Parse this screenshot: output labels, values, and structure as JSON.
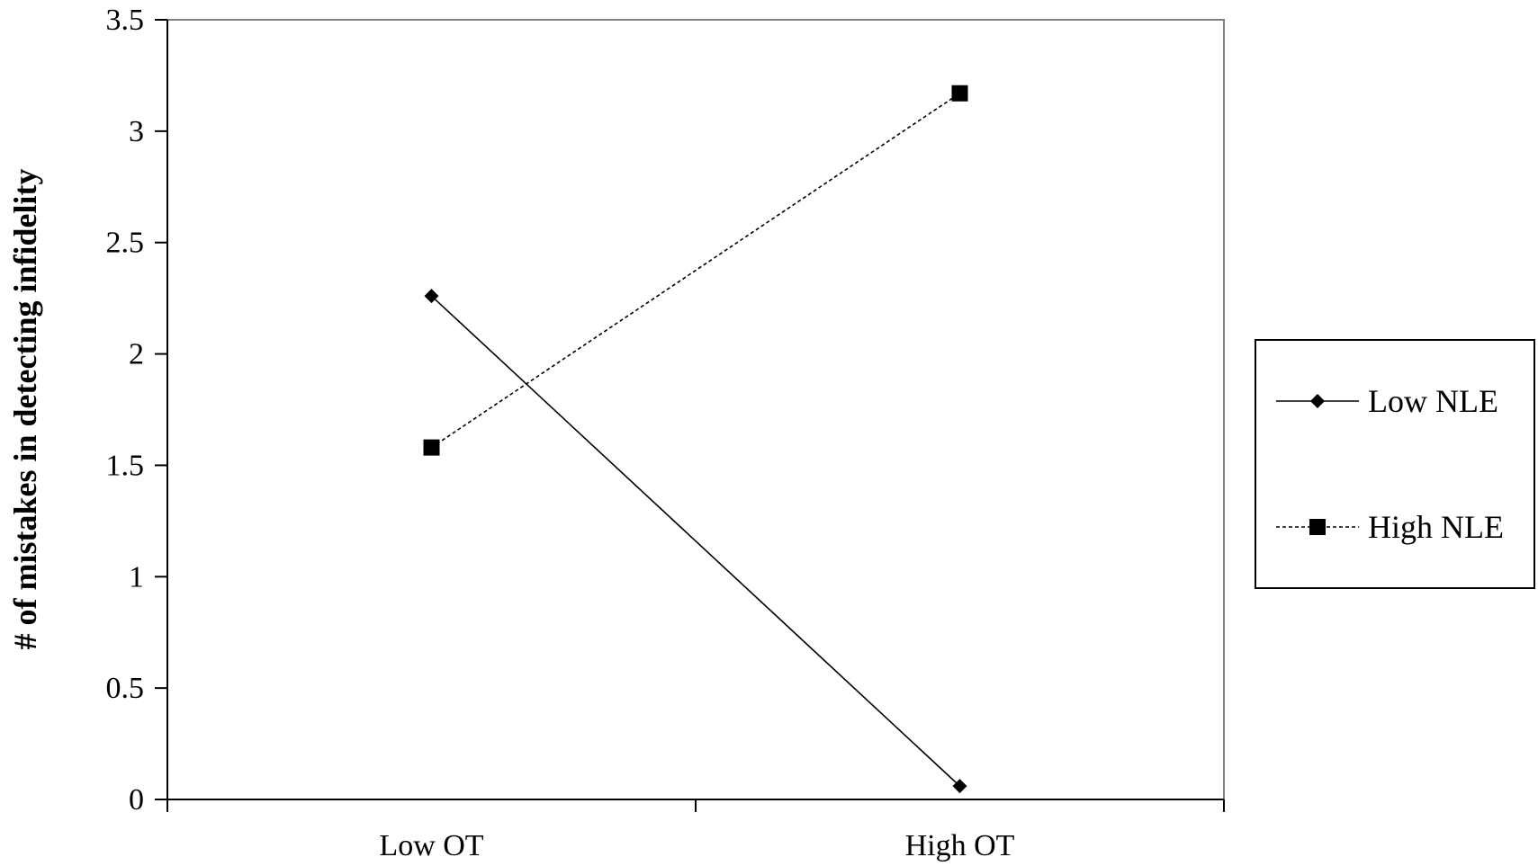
{
  "chart_data": {
    "type": "line",
    "title": "",
    "xlabel": "",
    "ylabel": "# of mistakes in detecting infidelity",
    "categories": [
      "Low OT",
      "High OT"
    ],
    "ylim": [
      0,
      3.5
    ],
    "yticks": [
      "0",
      "0.5",
      "1",
      "1.5",
      "2",
      "2.5",
      "3",
      "3.5"
    ],
    "grid": false,
    "legend_position": "right",
    "series": [
      {
        "name": "Low NLE",
        "values": [
          2.26,
          0.06
        ],
        "marker": "diamond",
        "line_style": "solid",
        "color": "#000000"
      },
      {
        "name": "High NLE",
        "values": [
          1.58,
          3.17
        ],
        "marker": "square",
        "line_style": "dashed",
        "color": "#000000"
      }
    ]
  }
}
